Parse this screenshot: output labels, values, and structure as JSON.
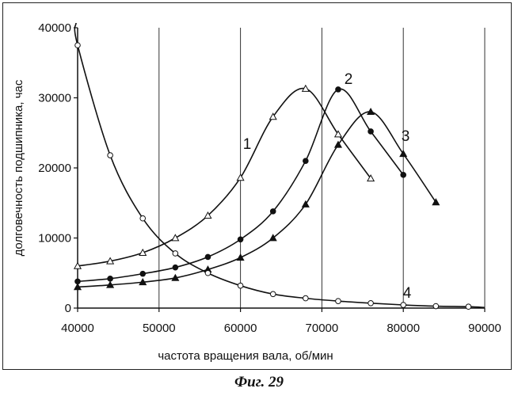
{
  "chart_data": {
    "type": "line",
    "title": "",
    "xlabel": "частота вращения вала, об/мин",
    "ylabel": "долговечность подшипника, час",
    "xlim": [
      40000,
      90000
    ],
    "ylim": [
      0,
      40000
    ],
    "x_ticks": [
      "40000",
      "50000",
      "60000",
      "70000",
      "80000",
      "90000"
    ],
    "y_ticks": [
      "0",
      "10000",
      "20000",
      "30000",
      "40000"
    ],
    "grid": "vertical",
    "series": [
      {
        "name": "1",
        "marker": "triangle-open",
        "points": [
          [
            40000,
            6000
          ],
          [
            44000,
            6700
          ],
          [
            48000,
            7900
          ],
          [
            52000,
            10000
          ],
          [
            56000,
            13200
          ],
          [
            60000,
            18600
          ],
          [
            64000,
            27300
          ],
          [
            68000,
            31300
          ],
          [
            72000,
            24800
          ],
          [
            76000,
            18500
          ]
        ]
      },
      {
        "name": "2",
        "marker": "circle-filled",
        "points": [
          [
            40000,
            3800
          ],
          [
            44000,
            4200
          ],
          [
            48000,
            4900
          ],
          [
            52000,
            5800
          ],
          [
            56000,
            7300
          ],
          [
            60000,
            9800
          ],
          [
            64000,
            13800
          ],
          [
            68000,
            21000
          ],
          [
            72000,
            31200
          ],
          [
            76000,
            25200
          ],
          [
            80000,
            19000
          ]
        ]
      },
      {
        "name": "3",
        "marker": "triangle-filled",
        "points": [
          [
            40000,
            3000
          ],
          [
            44000,
            3300
          ],
          [
            48000,
            3700
          ],
          [
            52000,
            4300
          ],
          [
            56000,
            5500
          ],
          [
            60000,
            7200
          ],
          [
            64000,
            10000
          ],
          [
            68000,
            14800
          ],
          [
            72000,
            23300
          ],
          [
            76000,
            28000
          ],
          [
            80000,
            22000
          ],
          [
            84000,
            15100
          ]
        ]
      },
      {
        "name": "4",
        "marker": "circle-open",
        "points": [
          [
            40000,
            37500
          ],
          [
            44000,
            21800
          ],
          [
            48000,
            12800
          ],
          [
            52000,
            7800
          ],
          [
            56000,
            5000
          ],
          [
            60000,
            3200
          ],
          [
            64000,
            2000
          ],
          [
            68000,
            1400
          ],
          [
            72000,
            1000
          ],
          [
            76000,
            700
          ],
          [
            80000,
            450
          ],
          [
            84000,
            280
          ],
          [
            88000,
            200
          ]
        ]
      }
    ]
  },
  "caption": "Фиг. 29"
}
